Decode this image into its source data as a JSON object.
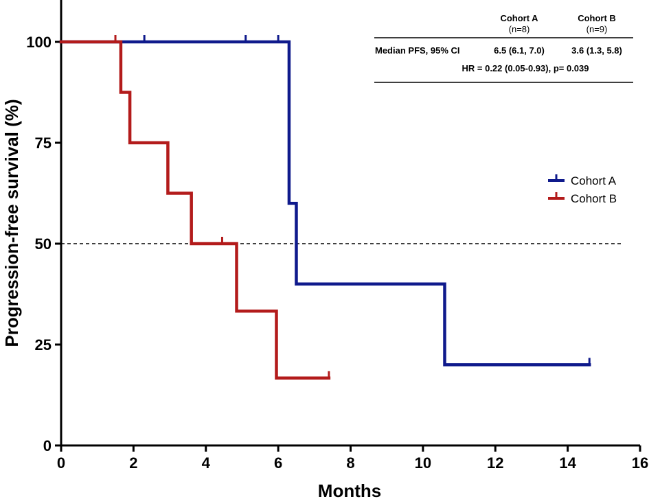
{
  "chart_data": {
    "type": "line",
    "subtype": "kaplan-meier",
    "xlabel": "Months",
    "ylabel": "Progression-free survival (%)",
    "xlim": [
      0,
      16
    ],
    "ylim": [
      0,
      110
    ],
    "xticks": [
      0,
      2,
      4,
      6,
      8,
      10,
      12,
      14,
      16
    ],
    "yticks": [
      0,
      25,
      50,
      75,
      100
    ],
    "reference_line": {
      "y": 50,
      "style": "dashed",
      "x_end": 15.5
    },
    "grid": false,
    "legend_position": "right",
    "series": [
      {
        "name": "Cohort A",
        "color": "#0f1a8c",
        "steps": [
          [
            0,
            100
          ],
          [
            6.3,
            60
          ],
          [
            6.5,
            40
          ],
          [
            10.6,
            20
          ],
          [
            14.6,
            20
          ]
        ],
        "censor_marks": [
          [
            2.3,
            100
          ],
          [
            5.1,
            100
          ],
          [
            6.0,
            100
          ],
          [
            14.6,
            20
          ]
        ]
      },
      {
        "name": "Cohort B",
        "color": "#b31b1b",
        "steps": [
          [
            0,
            100
          ],
          [
            1.65,
            87.5
          ],
          [
            1.9,
            75
          ],
          [
            2.95,
            62.5
          ],
          [
            3.6,
            50
          ],
          [
            4.85,
            33.3
          ],
          [
            5.95,
            16.7
          ],
          [
            7.4,
            16.7
          ]
        ],
        "censor_marks": [
          [
            1.5,
            100
          ],
          [
            4.45,
            50
          ],
          [
            7.4,
            16.7
          ]
        ]
      }
    ],
    "table": {
      "col_headers": [
        {
          "name": "Cohort A",
          "n": "(n=8)"
        },
        {
          "name": "Cohort B",
          "n": "(n=9)"
        }
      ],
      "row_label": "Median PFS, 95% CI",
      "values": [
        "6.5 (6.1, 7.0)",
        "3.6 (1.3, 5.8)"
      ],
      "hr_text": "HR = 0.22 (0.05-0.93), p= 0.039"
    }
  }
}
